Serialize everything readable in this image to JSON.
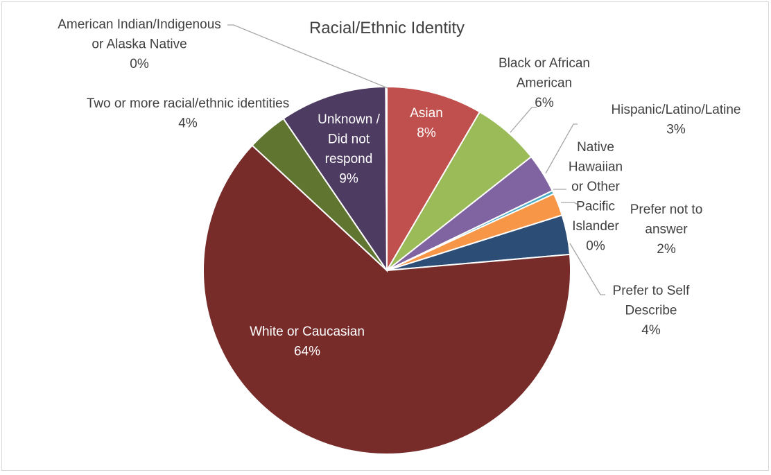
{
  "chart_data": {
    "type": "pie",
    "title": "Racial/Ethnic Identity",
    "slices": [
      {
        "key": "asian",
        "label_lines": [
          "Asian"
        ],
        "percent_label": "8%",
        "value": 8.5,
        "color": "#C0504D"
      },
      {
        "key": "black",
        "label_lines": [
          "Black or African",
          "American"
        ],
        "percent_label": "6%",
        "value": 6.0,
        "color": "#9BBB59"
      },
      {
        "key": "hispanic",
        "label_lines": [
          "Hispanic/Latino/Latine"
        ],
        "percent_label": "3%",
        "value": 3.5,
        "color": "#8064A2"
      },
      {
        "key": "hawaiian",
        "label_lines": [
          "Native",
          "Hawaiian",
          "or Other",
          "Pacific",
          "Islander"
        ],
        "percent_label": "0%",
        "value": 0.3,
        "color": "#4BACC6"
      },
      {
        "key": "prefer-not",
        "label_lines": [
          "Prefer not to",
          "answer"
        ],
        "percent_label": "2%",
        "value": 2.0,
        "color": "#F79646"
      },
      {
        "key": "self-describe",
        "label_lines": [
          "Prefer to Self",
          "Describe"
        ],
        "percent_label": "4%",
        "value": 3.5,
        "color": "#2C4D75"
      },
      {
        "key": "white",
        "label_lines": [
          "White or Caucasian"
        ],
        "percent_label": "64%",
        "value": 63.8,
        "color": "#772C2A"
      },
      {
        "key": "two-or-more",
        "label_lines": [
          "Two or more racial/ethnic identities"
        ],
        "percent_label": "4%",
        "value": 3.6,
        "color": "#5F7530"
      },
      {
        "key": "unknown",
        "label_lines": [
          "Unknown /",
          "Did not",
          "respond"
        ],
        "percent_label": "9%",
        "value": 9.5,
        "color": "#4D3B62"
      },
      {
        "key": "american-indian",
        "label_lines": [
          "American Indian/Indigenous",
          "or Alaska Native"
        ],
        "percent_label": "0%",
        "value": 0.1,
        "color": "#A5A5A5"
      }
    ],
    "start_angle_deg": 0,
    "direction": "clockwise",
    "legend": "none",
    "data_labels": "category name and percentage"
  }
}
